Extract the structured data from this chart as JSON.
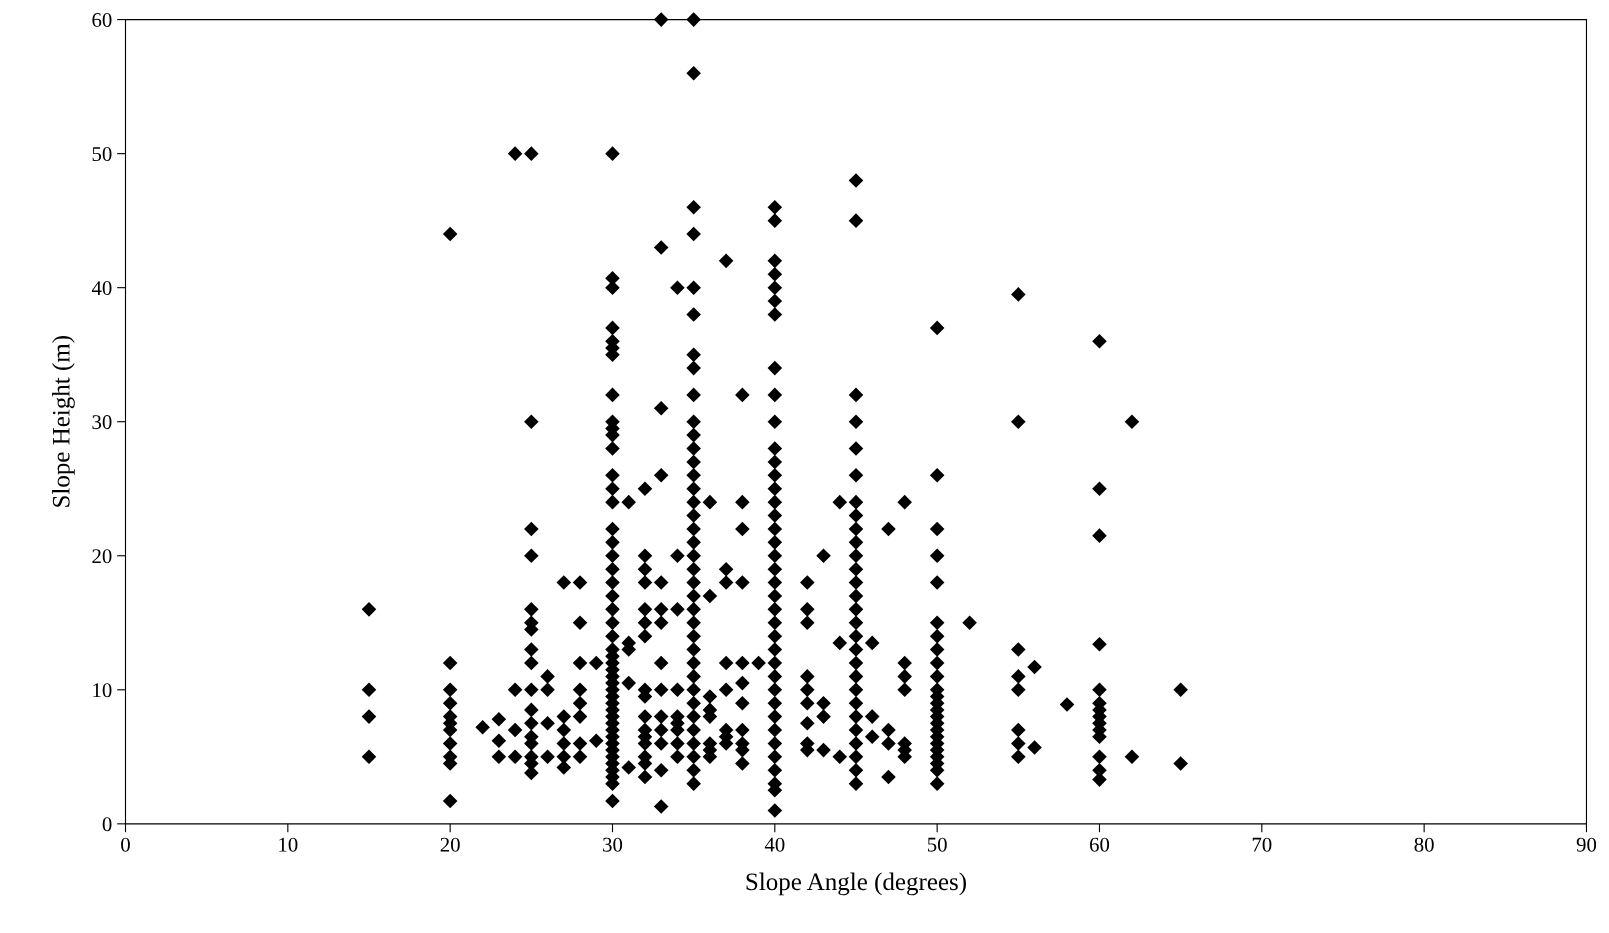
{
  "chart_data": {
    "type": "scatter",
    "xlabel": "Slope Angle (degrees)",
    "ylabel": "Slope Height (m)",
    "xlim": [
      0,
      90
    ],
    "xticks": [
      0,
      10,
      20,
      30,
      40,
      50,
      60,
      70,
      80,
      90
    ],
    "ylim": [
      0,
      60
    ],
    "yticks": [
      0,
      10,
      20,
      30,
      40,
      50,
      60
    ],
    "grid": false,
    "legend": false,
    "marker": "diamond",
    "series": [
      {
        "color": "#000000",
        "x": [
          15,
          15,
          15,
          15,
          20,
          20,
          20,
          20,
          20,
          20,
          20,
          20,
          20,
          20,
          20,
          22,
          23,
          23,
          23,
          24,
          24,
          24,
          24,
          25,
          25,
          25,
          25,
          25,
          25,
          25,
          25,
          25,
          25,
          25,
          25,
          25,
          25,
          25,
          25,
          25,
          26,
          26,
          26,
          26,
          27,
          27,
          27,
          27,
          27,
          27,
          28,
          28,
          28,
          28,
          28,
          28,
          28,
          28,
          29,
          29,
          30,
          30,
          30,
          30,
          30,
          30,
          30,
          30,
          30,
          30,
          30,
          30,
          30,
          30,
          30,
          30,
          30,
          30,
          30,
          30,
          30,
          30,
          30,
          30,
          30,
          30,
          30,
          30,
          30,
          30,
          30,
          30,
          30,
          30,
          30,
          30,
          30,
          30,
          30,
          30,
          30,
          30,
          30,
          30,
          30,
          30,
          31,
          31,
          31,
          31,
          31,
          32,
          32,
          32,
          32,
          32,
          32,
          32,
          32,
          32,
          32,
          32,
          32,
          32,
          32,
          32,
          32,
          33,
          33,
          33,
          33,
          33,
          33,
          33,
          33,
          33,
          33,
          33,
          33,
          33,
          33,
          34,
          34,
          34,
          34,
          34,
          34,
          34,
          34,
          34,
          35,
          35,
          35,
          35,
          35,
          35,
          35,
          35,
          35,
          35,
          35,
          35,
          35,
          35,
          35,
          35,
          35,
          35,
          35,
          35,
          35,
          35,
          35,
          35,
          35,
          35,
          35,
          35,
          35,
          35,
          35,
          35,
          35,
          35,
          35,
          35,
          35,
          36,
          36,
          36,
          36,
          36,
          36,
          36,
          36,
          37,
          37,
          37,
          37,
          37,
          37,
          37,
          37,
          38,
          38,
          38,
          38,
          38,
          38,
          38,
          38,
          38,
          38,
          38,
          39,
          40,
          40,
          40,
          40,
          40,
          40,
          40,
          40,
          40,
          40,
          40,
          40,
          40,
          40,
          40,
          40,
          40,
          40,
          40,
          40,
          40,
          40,
          40,
          40,
          40,
          40,
          40,
          40,
          40,
          40,
          40,
          40,
          40,
          40,
          40,
          40,
          40,
          40,
          42,
          42,
          42,
          42,
          42,
          42,
          42,
          42,
          42,
          43,
          43,
          43,
          43,
          44,
          44,
          44,
          45,
          45,
          45,
          45,
          45,
          45,
          45,
          45,
          45,
          45,
          45,
          45,
          45,
          45,
          45,
          45,
          45,
          45,
          45,
          45,
          45,
          45,
          45,
          45,
          45,
          45,
          45,
          45,
          46,
          46,
          46,
          47,
          47,
          47,
          47,
          48,
          48,
          48,
          48,
          48,
          48,
          48,
          50,
          50,
          50,
          50,
          50,
          50,
          50,
          50,
          50,
          50,
          50,
          50,
          50,
          50,
          50,
          50,
          50,
          50,
          50,
          50,
          50,
          50,
          50,
          50,
          52,
          55,
          55,
          55,
          55,
          55,
          55,
          55,
          55,
          56,
          56,
          58,
          60,
          60,
          60,
          60,
          60,
          60,
          60,
          60,
          60,
          60,
          60,
          60,
          60,
          60,
          62,
          62,
          65,
          65
        ],
        "values": [
          16,
          10,
          8,
          5,
          44,
          12,
          10,
          9,
          8,
          7.5,
          7,
          6,
          5,
          4.5,
          1.7,
          7.2,
          7.8,
          6.2,
          5,
          50,
          10,
          7,
          5,
          50,
          30,
          22,
          20,
          16,
          15,
          14.5,
          13,
          12,
          10,
          8.5,
          7.5,
          6.5,
          6,
          5,
          4.5,
          3.8,
          11,
          10,
          7.5,
          5,
          18,
          8,
          7,
          6,
          5,
          4.2,
          18,
          15,
          12,
          10,
          9,
          8,
          6,
          5,
          12,
          6.2,
          50,
          40.7,
          40,
          37,
          36,
          35.5,
          35,
          32,
          30,
          29.5,
          29,
          28,
          26,
          25,
          24,
          22,
          21,
          20,
          19,
          18,
          17,
          16,
          15,
          14,
          13,
          12.5,
          12,
          11.5,
          11,
          10.5,
          10,
          9.5,
          9,
          8.5,
          8,
          7.5,
          7,
          6.5,
          6,
          5.5,
          5,
          4.5,
          4,
          3.5,
          3,
          1.7,
          24,
          13.5,
          13,
          10.5,
          4.2,
          25,
          20,
          19,
          18,
          16,
          15,
          14,
          10,
          9.5,
          8,
          7,
          6.5,
          6,
          5,
          4.5,
          3.5,
          60,
          43,
          31,
          26,
          18,
          16,
          15,
          12,
          10,
          8,
          7,
          6,
          4,
          1.3,
          40,
          20,
          16,
          10,
          8,
          7.5,
          7,
          6,
          5,
          60,
          56,
          46,
          44,
          40,
          38,
          35,
          34,
          32,
          30,
          29,
          28,
          27,
          26,
          25,
          24,
          23,
          22,
          21,
          20,
          19,
          18,
          17,
          16,
          15,
          14,
          13,
          12,
          11,
          10,
          9,
          8,
          7,
          6,
          5,
          4,
          3,
          24,
          17,
          9.5,
          8.5,
          8,
          6,
          5.5,
          5,
          42,
          19,
          18,
          12,
          10,
          7,
          6.5,
          6,
          32,
          24,
          22,
          18,
          12,
          10.5,
          9,
          7,
          6,
          5.5,
          4.5,
          12,
          46,
          45,
          42,
          41,
          40,
          39,
          38,
          34,
          32,
          30,
          28,
          27,
          26,
          25,
          24,
          23,
          22,
          21,
          20,
          19,
          18,
          17,
          16,
          15,
          14,
          13,
          12,
          11,
          10,
          9,
          8,
          7,
          6,
          5,
          4,
          3,
          2.5,
          1,
          18,
          16,
          15,
          11,
          10,
          9,
          7.5,
          6,
          5.5,
          20,
          9,
          8,
          5.5,
          24,
          13.5,
          5,
          48,
          45,
          32,
          30,
          28,
          26,
          24,
          23,
          22,
          21,
          20,
          19,
          18,
          17,
          16,
          15,
          14,
          13,
          12,
          11,
          10,
          9,
          8,
          7,
          6,
          5,
          4,
          3,
          13.5,
          8,
          6.5,
          22,
          7,
          6,
          3.5,
          24,
          12,
          11,
          10,
          6,
          5.5,
          5,
          37,
          26,
          22,
          20,
          18,
          15,
          14,
          13,
          12,
          11,
          10,
          9.5,
          9,
          8.5,
          8,
          7.5,
          7,
          6.5,
          6,
          5.5,
          5,
          4.5,
          4,
          3,
          15,
          39.5,
          30,
          13,
          11,
          10,
          7,
          6,
          5,
          11.7,
          5.7,
          8.9,
          36,
          25,
          21.5,
          13.4,
          10,
          9,
          8.5,
          8,
          7.5,
          7,
          6.5,
          5,
          4,
          3.3,
          30,
          5,
          10,
          4.5
        ]
      }
    ]
  }
}
